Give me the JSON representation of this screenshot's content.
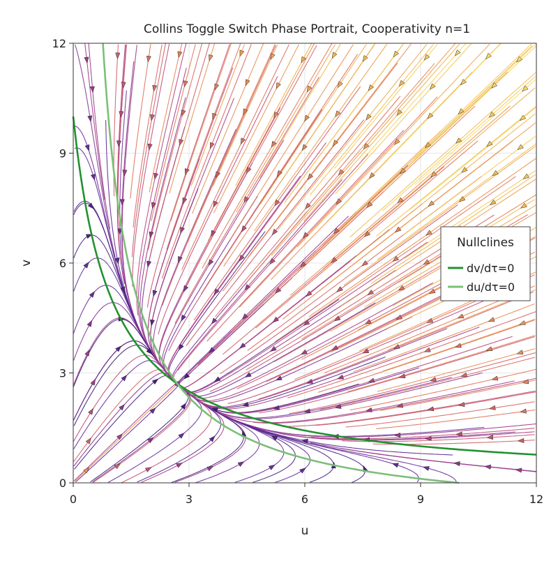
{
  "chart_data": {
    "type": "streamplot",
    "title": "Collins Toggle Switch Phase Portrait, Cooperativity n=1",
    "xlabel": "u",
    "ylabel": "v",
    "xlim": [
      0,
      12
    ],
    "ylim": [
      0,
      12
    ],
    "xticks": [
      0,
      3,
      6,
      9,
      12
    ],
    "yticks": [
      0,
      3,
      6,
      9,
      12
    ],
    "grid": true,
    "parameters": {
      "alpha": 10,
      "n": 1
    },
    "equations": {
      "du": "alpha / (1 + v^n) - u",
      "dv": "alpha / (1 + u^n) - v"
    },
    "streamline_colormap": [
      "#2d1a6b",
      "#6a2ea0",
      "#b5427f",
      "#e0735a",
      "#f2b84a",
      "#f7ea74"
    ],
    "nullclines": [
      {
        "name": "dv/dτ=0",
        "equation": "v = 10 / (1 + u)",
        "color": "#22912f"
      },
      {
        "name": "du/dτ=0",
        "equation": "u = 10 / (1 + v)",
        "color": "#7bbf78"
      }
    ],
    "fixed_point": {
      "u": 2.7,
      "v": 2.7
    },
    "legend": {
      "title": "Nullclines",
      "placement": "right",
      "entries": [
        "dv/dτ=0",
        "du/dτ=0"
      ]
    }
  }
}
